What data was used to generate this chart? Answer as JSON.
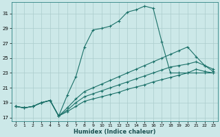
{
  "xlabel": "Humidex (Indice chaleur)",
  "bg_color": "#cce8e8",
  "grid_color": "#aacccc",
  "line_color": "#1a7068",
  "xlim": [
    -0.5,
    23.5
  ],
  "ylim": [
    16.5,
    32.5
  ],
  "xticks": [
    0,
    1,
    2,
    3,
    4,
    5,
    6,
    7,
    8,
    9,
    10,
    11,
    12,
    13,
    14,
    15,
    16,
    17,
    18,
    19,
    20,
    21,
    22,
    23
  ],
  "yticks": [
    17,
    19,
    21,
    23,
    25,
    27,
    29,
    31
  ],
  "series": [
    {
      "x": [
        0,
        1,
        2,
        3,
        4,
        5,
        6,
        7,
        8,
        9,
        10,
        11,
        12,
        13,
        14,
        15,
        16,
        17,
        18,
        19,
        20,
        21,
        22,
        23
      ],
      "y": [
        18.5,
        18.3,
        18.5,
        19.0,
        19.3,
        17.2,
        20.0,
        22.5,
        26.5,
        28.8,
        29.0,
        29.3,
        30.0,
        31.2,
        31.5,
        32.0,
        31.7,
        27.2,
        23.0,
        23.0,
        23.0,
        23.0,
        23.0,
        23.0
      ]
    },
    {
      "x": [
        0,
        1,
        2,
        3,
        4,
        5,
        6,
        7,
        8,
        9,
        10,
        11,
        12,
        13,
        14,
        15,
        16,
        17,
        18,
        19,
        20,
        21,
        22,
        23
      ],
      "y": [
        18.5,
        18.3,
        18.5,
        19.0,
        19.3,
        17.2,
        18.3,
        19.5,
        20.5,
        21.0,
        21.5,
        22.0,
        22.5,
        23.0,
        23.5,
        24.0,
        24.5,
        25.0,
        25.5,
        26.0,
        26.5,
        25.2,
        24.0,
        23.5
      ]
    },
    {
      "x": [
        0,
        1,
        2,
        3,
        4,
        5,
        6,
        7,
        8,
        9,
        10,
        11,
        12,
        13,
        14,
        15,
        16,
        17,
        18,
        19,
        20,
        21,
        22,
        23
      ],
      "y": [
        18.5,
        18.3,
        18.5,
        19.0,
        19.3,
        17.2,
        18.0,
        19.0,
        19.8,
        20.2,
        20.6,
        21.0,
        21.4,
        21.8,
        22.2,
        22.6,
        23.0,
        23.4,
        23.8,
        24.0,
        24.2,
        24.5,
        24.0,
        23.2
      ]
    },
    {
      "x": [
        0,
        1,
        2,
        3,
        4,
        5,
        6,
        7,
        8,
        9,
        10,
        11,
        12,
        13,
        14,
        15,
        16,
        17,
        18,
        19,
        20,
        21,
        22,
        23
      ],
      "y": [
        18.5,
        18.3,
        18.5,
        19.0,
        19.3,
        17.2,
        17.8,
        18.5,
        19.2,
        19.5,
        19.8,
        20.1,
        20.4,
        20.8,
        21.1,
        21.4,
        21.8,
        22.1,
        22.4,
        22.7,
        23.0,
        23.5,
        23.2,
        23.0
      ]
    }
  ]
}
